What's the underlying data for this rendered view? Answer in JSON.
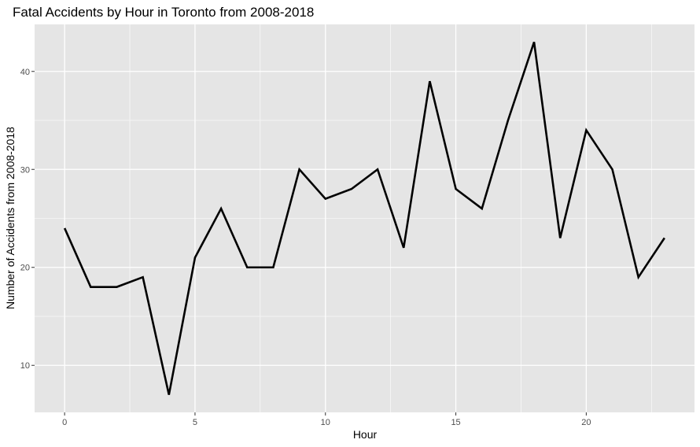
{
  "chart_data": {
    "type": "line",
    "title": "Fatal Accidents by Hour in Toronto from 2008-2018",
    "xlabel": "Hour",
    "ylabel": "Number of Accidents from 2008-2018",
    "x": [
      0,
      1,
      2,
      3,
      4,
      5,
      6,
      7,
      8,
      9,
      10,
      11,
      12,
      13,
      14,
      15,
      16,
      17,
      18,
      19,
      20,
      21,
      22,
      23
    ],
    "series": [
      {
        "values": [
          24,
          18,
          18,
          19,
          7,
          21,
          26,
          20,
          20,
          30,
          27,
          28,
          30,
          22,
          39,
          28,
          26,
          35,
          43,
          23,
          34,
          30,
          19,
          23
        ]
      }
    ],
    "xlim": [
      -1.15,
      24.15
    ],
    "ylim": [
      5.2,
      44.8
    ],
    "x_ticks": [
      "0",
      "5",
      "10",
      "15",
      "20"
    ],
    "y_ticks": [
      "10",
      "20",
      "30",
      "40"
    ],
    "grid": true,
    "colors": {
      "panel": "#e5e5e5",
      "grid": "#ffffff",
      "line": "#000000"
    }
  }
}
